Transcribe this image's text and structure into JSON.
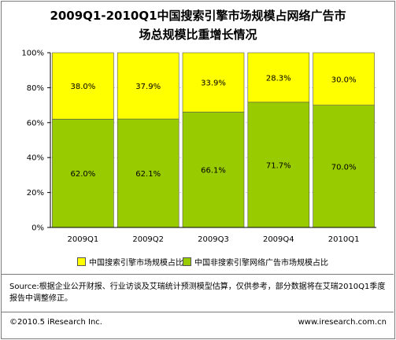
{
  "title_line1": "2009Q1-2010Q1中国搜索引擎市场规模占网络广告市",
  "title_line2": "场总规模比重增长情况",
  "legend": {
    "series1": "中国搜索引擎市场规模占比",
    "series2": "中国非搜索引擎网络广告市场规模占比"
  },
  "source": "Source:根据企业公开财报、行业访谈及艾瑞统计预测模型估算，仅供参考，部分数据将在艾瑞2010Q1季度报告中调整修正。",
  "copyright": "©2010.5 iResearch Inc.",
  "website": "www.iresearch.com.cn",
  "colors": {
    "series1": "#ffff00",
    "series2": "#99cc00"
  },
  "chart_data": {
    "type": "bar",
    "stacked": true,
    "categories": [
      "2009Q1",
      "2009Q2",
      "2009Q3",
      "2009Q4",
      "2010Q1"
    ],
    "series": [
      {
        "name": "中国非搜索引擎网络广告市场规模占比",
        "values": [
          62.0,
          62.1,
          66.1,
          71.7,
          70.0
        ]
      },
      {
        "name": "中国搜索引擎市场规模占比",
        "values": [
          38.0,
          37.9,
          33.9,
          28.3,
          30.0
        ]
      }
    ],
    "ylim": [
      0,
      100
    ],
    "yticks": [
      "0%",
      "20%",
      "40%",
      "60%",
      "80%",
      "100%"
    ],
    "legend_position": "bottom"
  }
}
